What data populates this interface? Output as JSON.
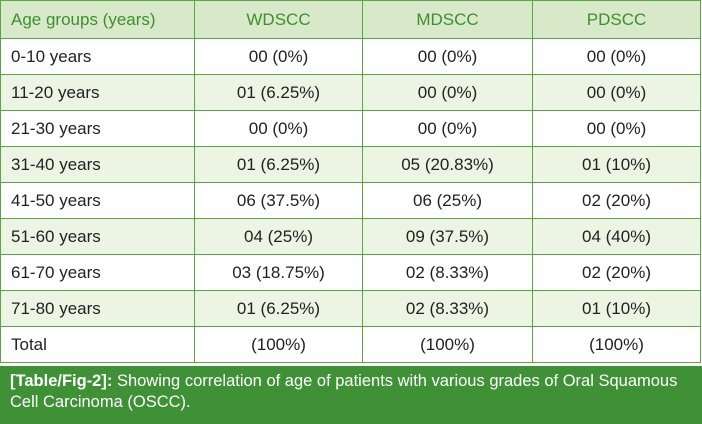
{
  "table": {
    "headers": [
      "Age groups (years)",
      "WDSCC",
      "MDSCC",
      "PDSCC"
    ],
    "rows": [
      [
        "0-10 years",
        "00 (0%)",
        "00 (0%)",
        "00 (0%)"
      ],
      [
        "11-20 years",
        "01 (6.25%)",
        "00 (0%)",
        "00 (0%)"
      ],
      [
        "21-30 years",
        "00 (0%)",
        "00 (0%)",
        "00 (0%)"
      ],
      [
        "31-40 years",
        "01 (6.25%)",
        "05 (20.83%)",
        "01 (10%)"
      ],
      [
        "41-50 years",
        "06 (37.5%)",
        "06 (25%)",
        "02 (20%)"
      ],
      [
        "51-60 years",
        "04 (25%)",
        "09 (37.5%)",
        "04 (40%)"
      ],
      [
        "61-70 years",
        "03 (18.75%)",
        "02 (8.33%)",
        "02 (20%)"
      ],
      [
        "71-80 years",
        "01 (6.25%)",
        "02 (8.33%)",
        "01 (10%)"
      ],
      [
        "Total",
        "(100%)",
        "(100%)",
        "(100%)"
      ]
    ]
  },
  "caption": {
    "ref": "[Table/Fig-2]:",
    "text": " Showing correlation of age of patients with various grades of Oral Squamous Cell Carcinoma (OSCC)."
  },
  "colors": {
    "border": "#5ba545",
    "header_bg": "#d7e9c8",
    "header_text": "#3d8f2f",
    "alt_row_bg": "#ecf5e4",
    "caption_bg": "#3f9136"
  }
}
